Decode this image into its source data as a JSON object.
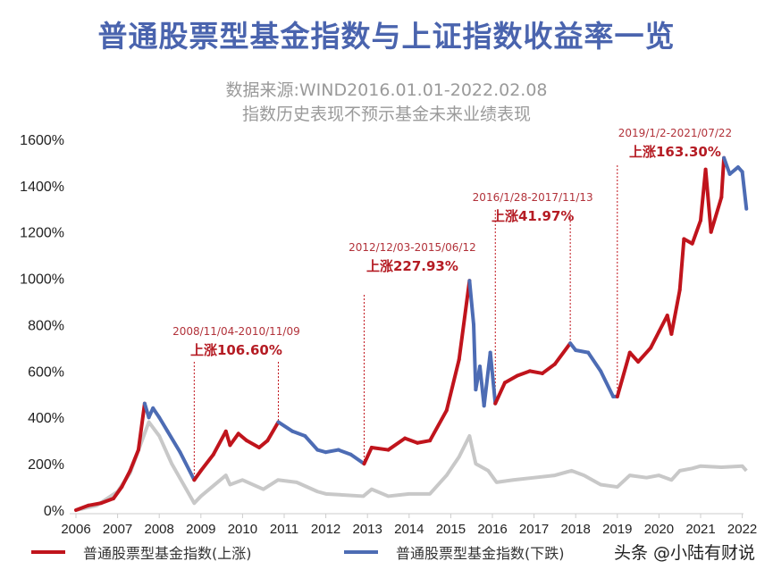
{
  "title": "普通股票型基金指数与上证指数收益率一览",
  "subtitle_1": "数据来源:WIND2016.01.01-2022.02.08",
  "subtitle_2": "指数历史表现不预示基金未来业绩表现",
  "watermark": "头条 @小陆有财说",
  "colors": {
    "title": "#4a64ae",
    "up": "#c0141c",
    "down": "#4d6cb4",
    "benchmark": "#c8c8c8",
    "annotation": "#c0141c"
  },
  "chart_data": {
    "type": "line",
    "xlim": [
      2006,
      2022.2
    ],
    "ylim": [
      0,
      1600
    ],
    "x_ticks": [
      "2006",
      "2007",
      "2008",
      "2009",
      "2010",
      "2011",
      "2012",
      "2013",
      "2014",
      "2015",
      "2016",
      "2017",
      "2018",
      "2019",
      "2020",
      "2021",
      "2022"
    ],
    "y_ticks": [
      "0%",
      "200%",
      "400%",
      "600%",
      "800%",
      "1000%",
      "1200%",
      "1400%",
      "1600%"
    ],
    "legend": [
      "普通股票型基金指数(上涨)",
      "普通股票型基金指数(下跌)"
    ],
    "legend_placement": "bottom",
    "grid": false,
    "series": [
      {
        "name": "普通股票型基金指数",
        "colored_by": "up/down",
        "x": [
          2006.0,
          2006.3,
          2006.6,
          2006.9,
          2007.1,
          2007.3,
          2007.5,
          2007.65,
          2007.75,
          2007.85,
          2008.0,
          2008.2,
          2008.5,
          2008.84,
          2009.0,
          2009.3,
          2009.6,
          2009.7,
          2009.9,
          2010.1,
          2010.4,
          2010.6,
          2010.86,
          2011.2,
          2011.5,
          2011.8,
          2012.0,
          2012.3,
          2012.6,
          2012.92,
          2013.1,
          2013.5,
          2013.9,
          2014.2,
          2014.5,
          2014.9,
          2015.2,
          2015.45,
          2015.55,
          2015.6,
          2015.7,
          2015.8,
          2015.95,
          2016.07,
          2016.3,
          2016.6,
          2016.9,
          2017.2,
          2017.5,
          2017.87,
          2018.0,
          2018.3,
          2018.6,
          2018.9,
          2019.0,
          2019.3,
          2019.5,
          2019.8,
          2020.0,
          2020.2,
          2020.3,
          2020.5,
          2020.6,
          2020.8,
          2021.0,
          2021.12,
          2021.25,
          2021.5,
          2021.56,
          2021.7,
          2021.9,
          2022.0,
          2022.1
        ],
        "y": [
          0,
          20,
          30,
          50,
          100,
          170,
          260,
          460,
          400,
          440,
          400,
          340,
          250,
          130,
          170,
          240,
          340,
          280,
          330,
          300,
          270,
          300,
          380,
          340,
          320,
          260,
          250,
          260,
          240,
          200,
          270,
          260,
          310,
          290,
          300,
          430,
          650,
          990,
          800,
          520,
          620,
          450,
          680,
          460,
          550,
          580,
          600,
          590,
          630,
          720,
          690,
          680,
          600,
          490,
          490,
          680,
          640,
          700,
          770,
          840,
          760,
          950,
          1170,
          1150,
          1250,
          1470,
          1200,
          1350,
          1520,
          1450,
          1480,
          1460,
          1300
        ]
      },
      {
        "x": [
          2006.0,
          2006.5,
          2007.0,
          2007.3,
          2007.75,
          2008.0,
          2008.3,
          2008.84,
          2009.0,
          2009.6,
          2009.7,
          2010.0,
          2010.5,
          2010.85,
          2011.3,
          2011.8,
          2012.0,
          2012.9,
          2013.1,
          2013.5,
          2014.0,
          2014.5,
          2014.9,
          2015.2,
          2015.45,
          2015.6,
          2015.9,
          2016.1,
          2016.5,
          2017.0,
          2017.5,
          2017.9,
          2018.2,
          2018.6,
          2019.0,
          2019.3,
          2019.7,
          2020.0,
          2020.3,
          2020.5,
          2020.8,
          2021.0,
          2021.5,
          2022.0,
          2022.1
        ],
        "y": [
          0,
          20,
          80,
          160,
          380,
          320,
          200,
          30,
          60,
          150,
          110,
          130,
          90,
          130,
          120,
          80,
          70,
          60,
          90,
          60,
          70,
          70,
          150,
          230,
          320,
          200,
          170,
          120,
          130,
          140,
          150,
          170,
          150,
          110,
          100,
          150,
          140,
          150,
          130,
          170,
          180,
          190,
          185,
          190,
          170
        ]
      }
    ],
    "up_ranges": [
      [
        2006.0,
        2007.65
      ],
      [
        2008.84,
        2010.86
      ],
      [
        2012.92,
        2015.45
      ],
      [
        2016.07,
        2017.87
      ],
      [
        2019.0,
        2021.56
      ]
    ],
    "annotations": [
      {
        "period": "2008/11/04-2010/11/09",
        "gain": "上涨106.60%",
        "start": 2008.84,
        "end": 2010.86
      },
      {
        "period": "2012/12/03-2015/06/12",
        "gain": "上涨227.93%",
        "start": 2012.92,
        "end": 2015.45
      },
      {
        "period": "2016/1/28-2017/11/13",
        "gain": "上涨41.97%",
        "start": 2016.07,
        "end": 2017.87
      },
      {
        "period": "2019/1/2-2021/07/22",
        "gain": "上涨163.30%",
        "start": 2019.0,
        "end": 2021.56
      }
    ]
  }
}
